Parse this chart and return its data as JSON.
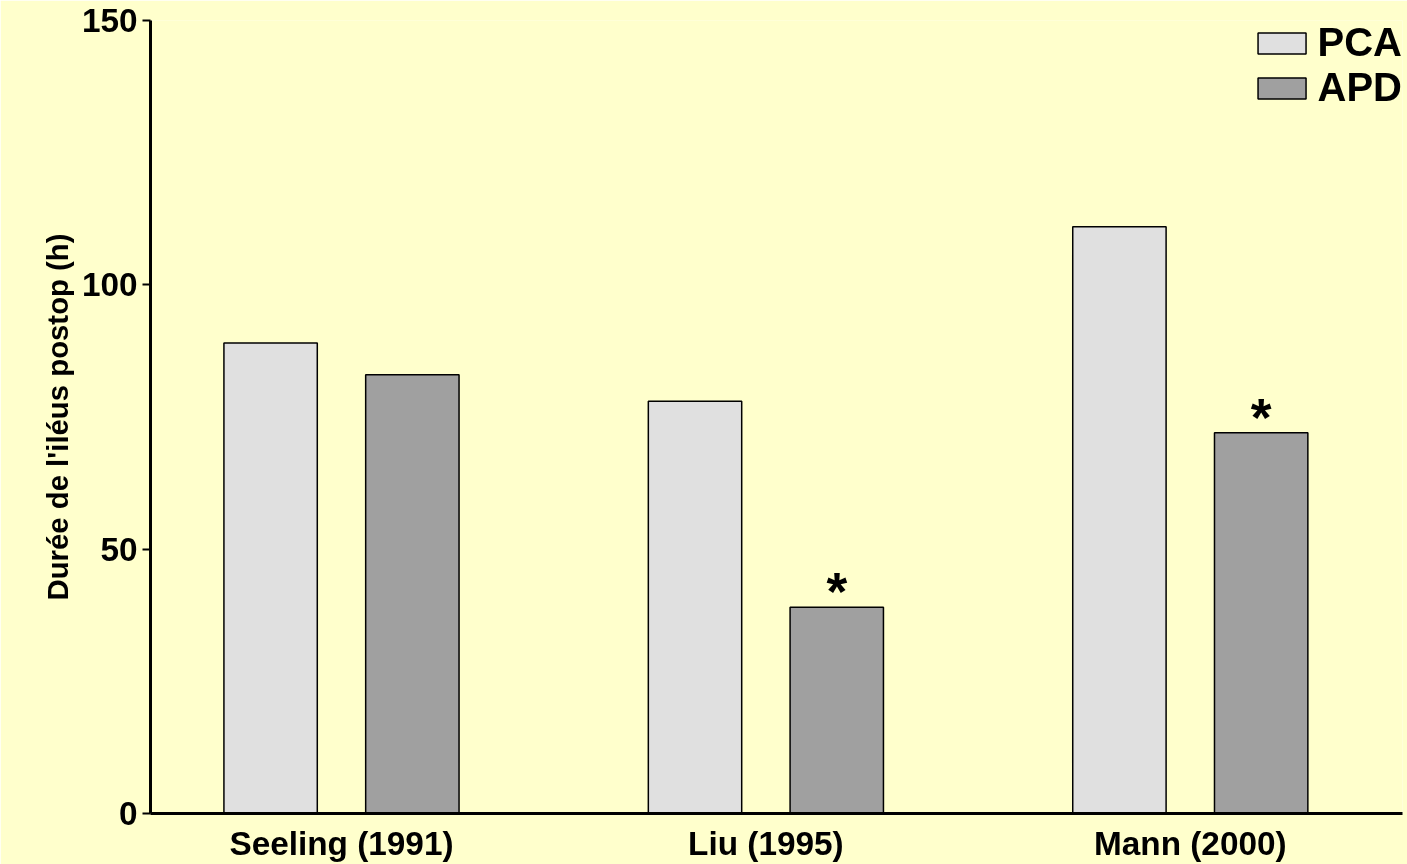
{
  "chart_data": {
    "type": "bar",
    "ylabel": "Durée de l'iléus postop (h)",
    "categories": [
      "Seeling (1991)",
      "Liu (1995)",
      "Mann (2000)"
    ],
    "series": [
      {
        "name": "PCA",
        "color": "#e0e0e0",
        "values": [
          89,
          78,
          111
        ]
      },
      {
        "name": "APD",
        "color": "#a0a0a0",
        "values": [
          83,
          39,
          72
        ]
      }
    ],
    "ylim": [
      0,
      150
    ],
    "yticks": [
      0,
      50,
      100,
      150
    ],
    "grid": false,
    "legend": "top right",
    "annotations": [
      "*",
      "*"
    ]
  }
}
